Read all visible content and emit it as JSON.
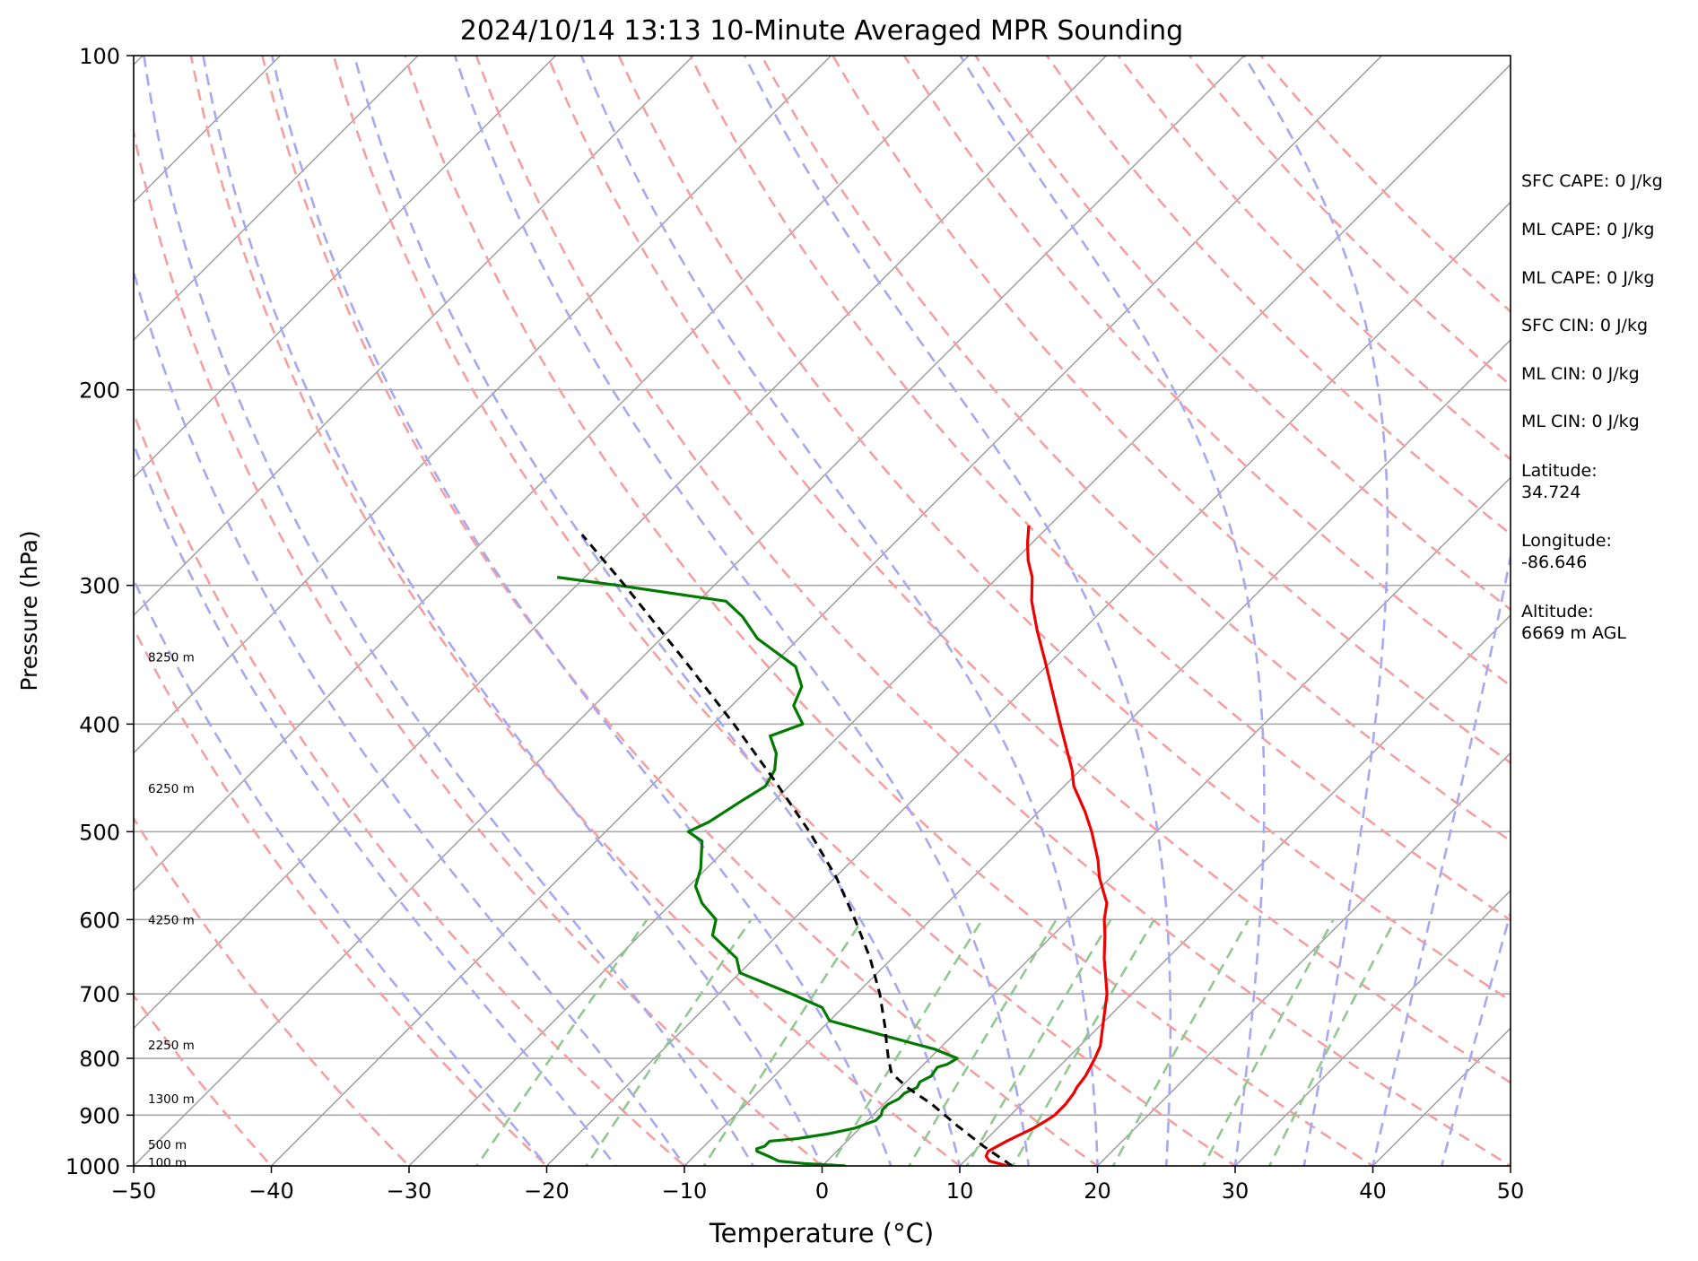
{
  "chart_data": {
    "type": "line",
    "title": "2024/10/14 13:13 10-Minute Averaged MPR Sounding",
    "xlabel": "Temperature (°C)",
    "ylabel": "Pressure (hPa)",
    "xlim": [
      -50,
      50
    ],
    "ylim": [
      1000,
      100
    ],
    "yscale": "log",
    "skew": true,
    "grid": true,
    "x_ticks": [
      "−50",
      "−40",
      "−30",
      "−20",
      "−10",
      "0",
      "10",
      "20",
      "30",
      "40",
      "50"
    ],
    "x_tick_values": [
      -50,
      -40,
      -30,
      -20,
      -10,
      0,
      10,
      20,
      30,
      40,
      50
    ],
    "y_ticks": [
      "100",
      "200",
      "300",
      "400",
      "500",
      "600",
      "700",
      "800",
      "900",
      "1000"
    ],
    "y_tick_values": [
      100,
      200,
      300,
      400,
      500,
      600,
      700,
      800,
      900,
      1000
    ],
    "isobars": [
      200,
      300,
      400,
      500,
      600,
      700,
      800,
      900
    ],
    "isotherms": [
      -130,
      -120,
      -110,
      -100,
      -90,
      -80,
      -70,
      -60,
      -50,
      -40,
      -30,
      -20,
      -10,
      0,
      10,
      20,
      30,
      40,
      50
    ],
    "dry_adiabats": [
      -50,
      -40,
      -30,
      -20,
      -10,
      0,
      10,
      20,
      30,
      40,
      50,
      60,
      70,
      80,
      90,
      100,
      110,
      120,
      130,
      140,
      150,
      160
    ],
    "moist_adiabats": [
      -20,
      -15,
      -10,
      -5,
      0,
      5,
      10,
      15,
      20,
      25,
      30,
      35,
      40,
      45
    ],
    "mixing_ratio_lines": [
      0.0005,
      0.001,
      0.002,
      0.004,
      0.006,
      0.008,
      0.01,
      0.016,
      0.024,
      0.032
    ],
    "series": [
      {
        "role": "temperature",
        "color": "#ee0000",
        "points": [
          [
            1000,
            13.5
          ],
          [
            990,
            11.8
          ],
          [
            980,
            11.2
          ],
          [
            970,
            11.0
          ],
          [
            960,
            11.3
          ],
          [
            950,
            11.6
          ],
          [
            940,
            12.0
          ],
          [
            925,
            12.6
          ],
          [
            910,
            13.0
          ],
          [
            900,
            13.2
          ],
          [
            880,
            13.2
          ],
          [
            860,
            13.0
          ],
          [
            850,
            12.8
          ],
          [
            830,
            12.6
          ],
          [
            810,
            12.2
          ],
          [
            800,
            12.0
          ],
          [
            780,
            11.5
          ],
          [
            750,
            10.3
          ],
          [
            700,
            8.2
          ],
          [
            650,
            5.4
          ],
          [
            620,
            3.8
          ],
          [
            600,
            2.6
          ],
          [
            580,
            1.6
          ],
          [
            550,
            -0.8
          ],
          [
            530,
            -2.2
          ],
          [
            500,
            -4.7
          ],
          [
            480,
            -6.6
          ],
          [
            465,
            -8.2
          ],
          [
            455,
            -9.3
          ],
          [
            440,
            -10.6
          ],
          [
            400,
            -14.8
          ],
          [
            375,
            -17.6
          ],
          [
            350,
            -20.6
          ],
          [
            330,
            -23.2
          ],
          [
            310,
            -25.8
          ],
          [
            295,
            -27.5
          ],
          [
            285,
            -29.0
          ],
          [
            275,
            -30.3
          ],
          [
            265,
            -31.5
          ]
        ]
      },
      {
        "role": "dewpoint",
        "color": "#007a00",
        "points": [
          [
            1000,
            1.7
          ],
          [
            995,
            -1.5
          ],
          [
            990,
            -3.5
          ],
          [
            980,
            -4.6
          ],
          [
            970,
            -5.8
          ],
          [
            965,
            -6.0
          ],
          [
            960,
            -5.6
          ],
          [
            950,
            -5.6
          ],
          [
            945,
            -3.8
          ],
          [
            935,
            -1.8
          ],
          [
            925,
            -0.4
          ],
          [
            910,
            0.6
          ],
          [
            900,
            0.6
          ],
          [
            890,
            0.3
          ],
          [
            880,
            0.3
          ],
          [
            870,
            0.7
          ],
          [
            860,
            0.7
          ],
          [
            850,
            1.2
          ],
          [
            840,
            1.0
          ],
          [
            830,
            1.4
          ],
          [
            815,
            1.2
          ],
          [
            810,
            1.7
          ],
          [
            800,
            2.0
          ],
          [
            785,
            -0.3
          ],
          [
            770,
            -3.5
          ],
          [
            740,
            -10.0
          ],
          [
            720,
            -11.5
          ],
          [
            700,
            -14.7
          ],
          [
            670,
            -20.0
          ],
          [
            650,
            -21.3
          ],
          [
            620,
            -24.7
          ],
          [
            600,
            -25.6
          ],
          [
            580,
            -27.8
          ],
          [
            560,
            -29.5
          ],
          [
            540,
            -30.4
          ],
          [
            510,
            -32.3
          ],
          [
            500,
            -34.0
          ],
          [
            490,
            -33.2
          ],
          [
            470,
            -32.4
          ],
          [
            455,
            -31.7
          ],
          [
            440,
            -32.2
          ],
          [
            425,
            -33.3
          ],
          [
            410,
            -35.0
          ],
          [
            400,
            -33.5
          ],
          [
            385,
            -35.5
          ],
          [
            370,
            -36.3
          ],
          [
            355,
            -38.2
          ],
          [
            335,
            -43.0
          ],
          [
            320,
            -45.7
          ],
          [
            310,
            -48.0
          ],
          [
            300,
            -57.0
          ],
          [
            295,
            -62.0
          ]
        ]
      },
      {
        "role": "parcel",
        "color": "#000000",
        "style": "dashed",
        "points": [
          [
            1000,
            13.8
          ],
          [
            960,
            10.3
          ],
          [
            920,
            6.9
          ],
          [
            880,
            3.5
          ],
          [
            850,
            0.5
          ],
          [
            825,
            -1.7
          ],
          [
            800,
            -3.0
          ],
          [
            780,
            -4.0
          ],
          [
            750,
            -5.5
          ],
          [
            700,
            -8.3
          ],
          [
            650,
            -11.6
          ],
          [
            600,
            -15.5
          ],
          [
            550,
            -19.9
          ],
          [
            500,
            -25.2
          ],
          [
            450,
            -31.4
          ],
          [
            400,
            -38.5
          ],
          [
            350,
            -46.8
          ],
          [
            300,
            -56.5
          ],
          [
            270,
            -63.3
          ]
        ]
      }
    ],
    "height_labels": [
      {
        "text": "8250 m",
        "p": 348
      },
      {
        "text": "6250 m",
        "p": 457
      },
      {
        "text": "4250 m",
        "p": 600
      },
      {
        "text": "2250 m",
        "p": 778
      },
      {
        "text": "1300 m",
        "p": 870
      },
      {
        "text": "500 m",
        "p": 956
      },
      {
        "text": "100 m",
        "p": 993
      }
    ],
    "annotations": [
      "SFC CAPE: 0 J/kg",
      "ML CAPE: 0 J/kg",
      "ML CAPE: 0 J/kg",
      "SFC CIN: 0 J/kg",
      "ML CIN: 0 J/kg",
      "ML CIN: 0 J/kg",
      "Latitude:",
      "34.724",
      "Longitude:",
      "-86.646",
      "Altitude:",
      "6669 m AGL"
    ],
    "colors": {
      "temperature": "#ee0000",
      "dewpoint": "#007a00",
      "parcel": "#000000",
      "isobar": "#aaaaaa",
      "isotherm": "#9a9a9a",
      "dry_adiabat": "#f4a0a0",
      "moist_adiabat": "#a8a8f0",
      "mixing_ratio": "#90c890"
    }
  }
}
